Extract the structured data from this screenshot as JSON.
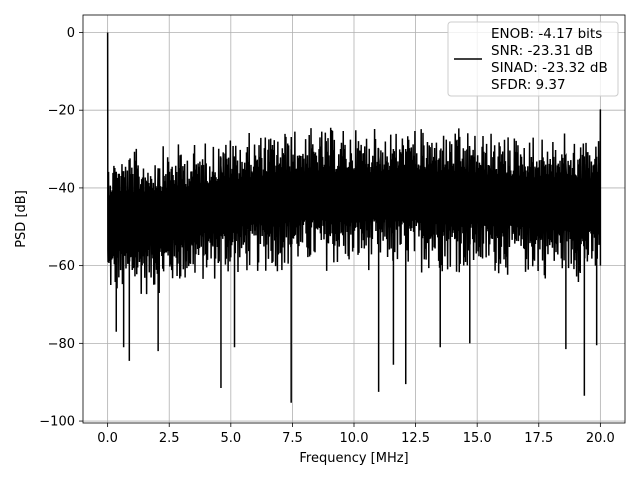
{
  "chart_data": {
    "type": "line",
    "xlabel": "Frequency [MHz]",
    "ylabel": "PSD [dB]",
    "xlim": [
      -1.0,
      21.0
    ],
    "ylim": [
      -100.5,
      4.5
    ],
    "xticks": [
      0.0,
      2.5,
      5.0,
      7.5,
      10.0,
      12.5,
      15.0,
      17.5,
      20.0
    ],
    "xtick_labels": [
      "0.0",
      "2.5",
      "5.0",
      "7.5",
      "10.0",
      "12.5",
      "15.0",
      "17.5",
      "20.0"
    ],
    "yticks": [
      0,
      -20,
      -40,
      -60,
      -80,
      -100
    ],
    "ytick_labels": [
      "0",
      "−20",
      "−40",
      "−60",
      "−80",
      "−100"
    ],
    "grid": true,
    "legend_position": "top-right",
    "series": [
      {
        "name_lines": [
          "ENOB: -4.17 bits",
          "SNR: -23.31 dB",
          "SINAD: -23.32 dB",
          "SFDR: 9.37"
        ],
        "color": "#000000",
        "noise_floor_top_db": [
          [
            0.0,
            -30.0
          ],
          [
            2.0,
            -29.0
          ],
          [
            5.0,
            -26.0
          ],
          [
            7.5,
            -24.0
          ],
          [
            12.5,
            -24.0
          ],
          [
            17.5,
            -25.5
          ],
          [
            20.0,
            -26.0
          ]
        ],
        "noise_floor_bottom_db": [
          [
            0.0,
            -70.0
          ],
          [
            2.0,
            -68.0
          ],
          [
            5.0,
            -64.0
          ],
          [
            7.5,
            -62.0
          ],
          [
            12.5,
            -62.0
          ],
          [
            17.5,
            -64.0
          ],
          [
            20.0,
            -65.0
          ]
        ],
        "peaks": [
          {
            "x": 0.0,
            "y": 0.0
          },
          {
            "x": 20.0,
            "y": -19.8
          }
        ],
        "dips": [
          {
            "x": 0.35,
            "y": -77.0
          },
          {
            "x": 0.65,
            "y": -81.0
          },
          {
            "x": 0.88,
            "y": -84.5
          },
          {
            "x": 2.05,
            "y": -82.0
          },
          {
            "x": 4.6,
            "y": -91.5
          },
          {
            "x": 5.15,
            "y": -81.0
          },
          {
            "x": 7.45,
            "y": -95.3
          },
          {
            "x": 11.0,
            "y": -92.5
          },
          {
            "x": 11.6,
            "y": -85.5
          },
          {
            "x": 12.1,
            "y": -90.5
          },
          {
            "x": 13.5,
            "y": -81.0
          },
          {
            "x": 14.7,
            "y": -80.0
          },
          {
            "x": 18.6,
            "y": -81.5
          },
          {
            "x": 19.35,
            "y": -93.5
          },
          {
            "x": 19.85,
            "y": -80.5
          }
        ]
      }
    ]
  }
}
